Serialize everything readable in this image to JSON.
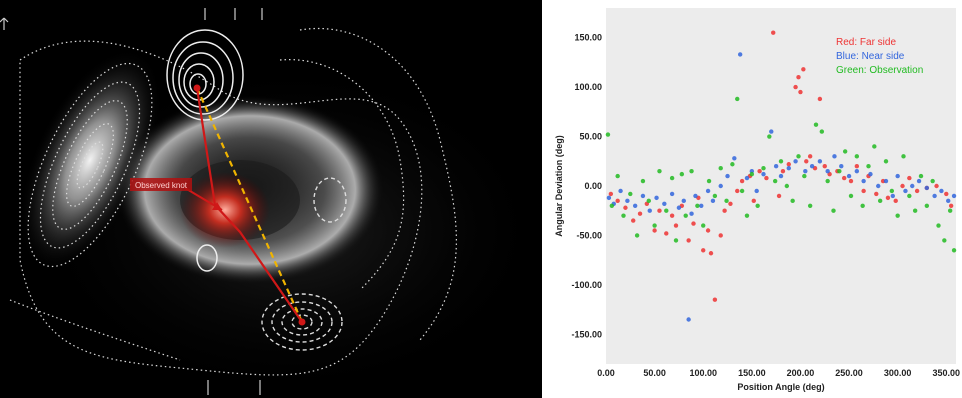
{
  "astro_image": {
    "annotation_label": "Observed knot",
    "colors": {
      "background": "#000000",
      "red_line": "#d01818",
      "dashed_line": "#f0b400",
      "contour": "#e8e8e8"
    }
  },
  "chart_data": {
    "type": "scatter",
    "xlabel": "Position Angle (deg)",
    "ylabel": "Angular Deviation (deg)",
    "xlim": [
      0,
      360
    ],
    "ylim": [
      -180,
      180
    ],
    "x_ticks": [
      "0.00",
      "50.00",
      "100.00",
      "150.00",
      "200.00",
      "250.00",
      "300.00",
      "350.00"
    ],
    "y_ticks": [
      "150.00",
      "100.00",
      "50.00",
      "0.00",
      "-50.00",
      "-100.00",
      "-150.00"
    ],
    "x_tick_values": [
      0,
      50,
      100,
      150,
      200,
      250,
      300,
      350
    ],
    "y_tick_values": [
      150,
      100,
      50,
      0,
      -50,
      -100,
      -150
    ],
    "grid": false,
    "background": "#ececec",
    "legend": {
      "placement": "top-right",
      "entries": [
        {
          "text": "Red: Far side",
          "color": "#ee3333"
        },
        {
          "text": "Blue: Near side",
          "color": "#3366dd"
        },
        {
          "text": "Green: Observation",
          "color": "#22bb22"
        }
      ]
    },
    "series": [
      {
        "color": "#ee3333",
        "points": [
          [
            5,
            -8
          ],
          [
            12,
            -15
          ],
          [
            20,
            -22
          ],
          [
            28,
            -35
          ],
          [
            35,
            -28
          ],
          [
            42,
            -18
          ],
          [
            50,
            -45
          ],
          [
            55,
            -25
          ],
          [
            62,
            -48
          ],
          [
            68,
            -30
          ],
          [
            72,
            -40
          ],
          [
            78,
            -20
          ],
          [
            85,
            -55
          ],
          [
            90,
            -38
          ],
          [
            95,
            -12
          ],
          [
            100,
            -65
          ],
          [
            105,
            -45
          ],
          [
            108,
            -68
          ],
          [
            112,
            -115
          ],
          [
            118,
            -50
          ],
          [
            122,
            -25
          ],
          [
            128,
            -18
          ],
          [
            135,
            -5
          ],
          [
            140,
            5
          ],
          [
            148,
            10
          ],
          [
            152,
            -15
          ],
          [
            158,
            15
          ],
          [
            165,
            8
          ],
          [
            172,
            155
          ],
          [
            178,
            -10
          ],
          [
            182,
            15
          ],
          [
            188,
            22
          ],
          [
            195,
            100
          ],
          [
            198,
            110
          ],
          [
            200,
            95
          ],
          [
            203,
            118
          ],
          [
            206,
            25
          ],
          [
            210,
            30
          ],
          [
            215,
            18
          ],
          [
            220,
            88
          ],
          [
            225,
            20
          ],
          [
            230,
            12
          ],
          [
            238,
            15
          ],
          [
            245,
            8
          ],
          [
            252,
            5
          ],
          [
            258,
            20
          ],
          [
            265,
            -5
          ],
          [
            270,
            10
          ],
          [
            278,
            -8
          ],
          [
            285,
            5
          ],
          [
            290,
            -12
          ],
          [
            298,
            -15
          ],
          [
            305,
            0
          ],
          [
            312,
            8
          ],
          [
            320,
            -5
          ],
          [
            330,
            -2
          ],
          [
            340,
            0
          ],
          [
            350,
            -8
          ],
          [
            355,
            -20
          ]
        ]
      },
      {
        "color": "#3366dd",
        "points": [
          [
            3,
            -12
          ],
          [
            8,
            -18
          ],
          [
            15,
            -5
          ],
          [
            22,
            -15
          ],
          [
            30,
            -20
          ],
          [
            38,
            -10
          ],
          [
            45,
            -25
          ],
          [
            52,
            -12
          ],
          [
            60,
            -18
          ],
          [
            68,
            -8
          ],
          [
            75,
            -22
          ],
          [
            80,
            -15
          ],
          [
            85,
            -135
          ],
          [
            88,
            -28
          ],
          [
            92,
            -10
          ],
          [
            98,
            -20
          ],
          [
            105,
            -5
          ],
          [
            110,
            -15
          ],
          [
            118,
            0
          ],
          [
            125,
            10
          ],
          [
            132,
            28
          ],
          [
            138,
            133
          ],
          [
            145,
            8
          ],
          [
            150,
            15
          ],
          [
            155,
            -5
          ],
          [
            162,
            12
          ],
          [
            170,
            55
          ],
          [
            175,
            20
          ],
          [
            180,
            10
          ],
          [
            188,
            18
          ],
          [
            195,
            25
          ],
          [
            205,
            15
          ],
          [
            212,
            20
          ],
          [
            220,
            25
          ],
          [
            228,
            15
          ],
          [
            235,
            30
          ],
          [
            242,
            20
          ],
          [
            250,
            10
          ],
          [
            258,
            15
          ],
          [
            265,
            5
          ],
          [
            272,
            12
          ],
          [
            280,
            0
          ],
          [
            288,
            5
          ],
          [
            295,
            -10
          ],
          [
            300,
            10
          ],
          [
            308,
            -5
          ],
          [
            315,
            0
          ],
          [
            322,
            5
          ],
          [
            330,
            -2
          ],
          [
            338,
            -10
          ],
          [
            345,
            -5
          ],
          [
            352,
            -15
          ],
          [
            358,
            -10
          ]
        ]
      },
      {
        "color": "#22bb22",
        "points": [
          [
            2,
            52
          ],
          [
            6,
            -20
          ],
          [
            12,
            10
          ],
          [
            18,
            -30
          ],
          [
            25,
            -8
          ],
          [
            32,
            -50
          ],
          [
            38,
            5
          ],
          [
            44,
            -15
          ],
          [
            50,
            -40
          ],
          [
            55,
            15
          ],
          [
            62,
            -25
          ],
          [
            68,
            8
          ],
          [
            72,
            -55
          ],
          [
            78,
            12
          ],
          [
            82,
            -30
          ],
          [
            88,
            15
          ],
          [
            94,
            -20
          ],
          [
            100,
            -40
          ],
          [
            106,
            5
          ],
          [
            112,
            -10
          ],
          [
            118,
            18
          ],
          [
            124,
            -15
          ],
          [
            130,
            22
          ],
          [
            135,
            88
          ],
          [
            140,
            -5
          ],
          [
            145,
            -30
          ],
          [
            150,
            12
          ],
          [
            156,
            -20
          ],
          [
            162,
            18
          ],
          [
            168,
            50
          ],
          [
            174,
            5
          ],
          [
            180,
            25
          ],
          [
            186,
            0
          ],
          [
            192,
            -15
          ],
          [
            198,
            30
          ],
          [
            204,
            10
          ],
          [
            210,
            -20
          ],
          [
            216,
            62
          ],
          [
            222,
            55
          ],
          [
            228,
            5
          ],
          [
            234,
            -25
          ],
          [
            240,
            15
          ],
          [
            246,
            35
          ],
          [
            252,
            -10
          ],
          [
            258,
            30
          ],
          [
            264,
            -20
          ],
          [
            270,
            20
          ],
          [
            276,
            40
          ],
          [
            282,
            -15
          ],
          [
            288,
            25
          ],
          [
            294,
            -5
          ],
          [
            300,
            -30
          ],
          [
            306,
            30
          ],
          [
            312,
            -10
          ],
          [
            318,
            -25
          ],
          [
            324,
            10
          ],
          [
            330,
            -20
          ],
          [
            336,
            5
          ],
          [
            342,
            -40
          ],
          [
            348,
            -55
          ],
          [
            354,
            -25
          ],
          [
            358,
            -65
          ]
        ]
      }
    ]
  }
}
